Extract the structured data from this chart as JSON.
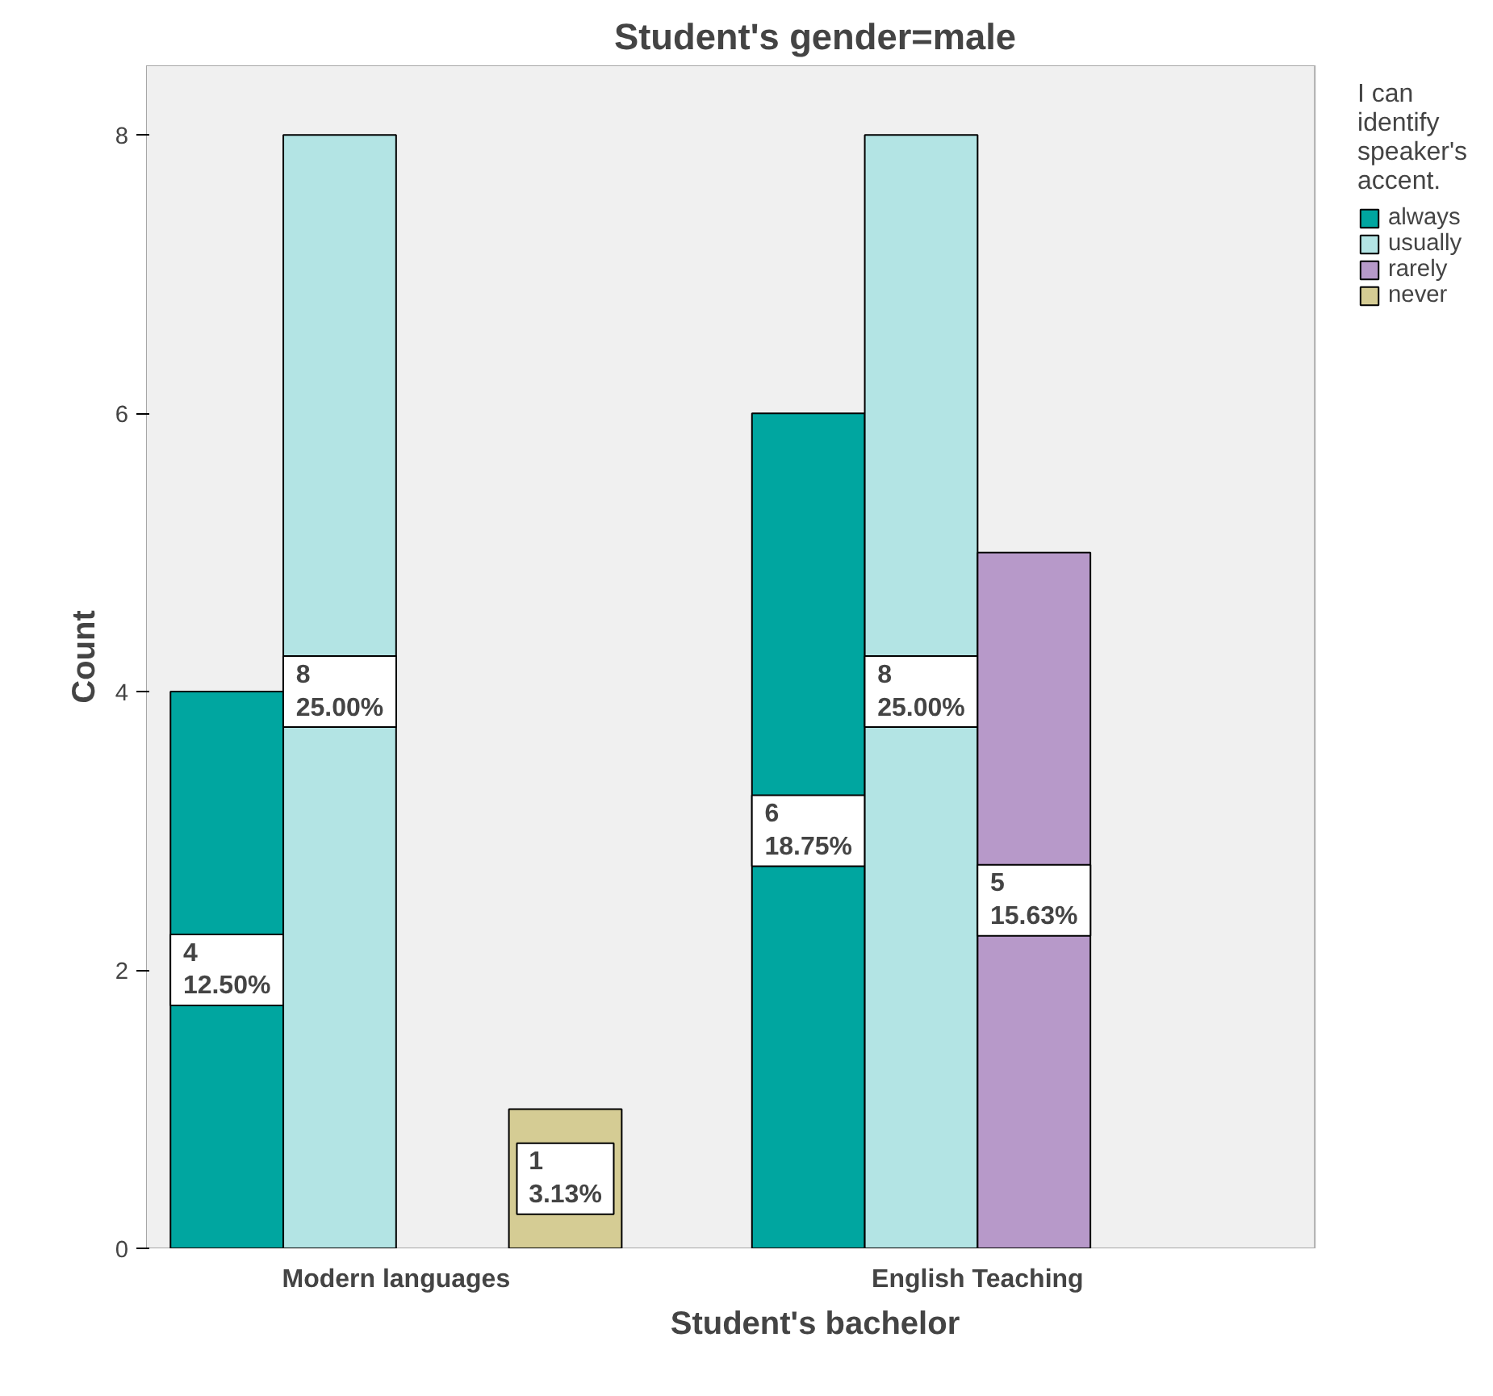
{
  "chart_data": {
    "type": "bar",
    "title": "Student's gender=male",
    "xlabel": "Student's bachelor",
    "ylabel": "Count",
    "legend_title": "I can identify speaker's accent.",
    "legend": "right",
    "categories": [
      "Modern languages",
      "English Teaching"
    ],
    "series": [
      {
        "name": "always",
        "color": "#00a6a0",
        "values": [
          4,
          6
        ],
        "value_labels": [
          "4\n12.50%",
          "6\n18.75%"
        ]
      },
      {
        "name": "usually",
        "color": "#b3e4e4",
        "values": [
          8,
          8
        ],
        "value_labels": [
          "8\n25.00%",
          "8\n25.00%"
        ]
      },
      {
        "name": "rarely",
        "color": "#b799c9",
        "values": [
          null,
          5
        ],
        "value_labels": [
          null,
          "5\n15.63%"
        ]
      },
      {
        "name": "never",
        "color": "#d5cc94",
        "values": [
          1,
          null
        ],
        "value_labels": [
          "1\n3.13%",
          null
        ]
      }
    ],
    "ylim": [
      0,
      8.5
    ],
    "yticks": [
      0,
      2,
      4,
      6,
      8
    ],
    "grid": false
  }
}
